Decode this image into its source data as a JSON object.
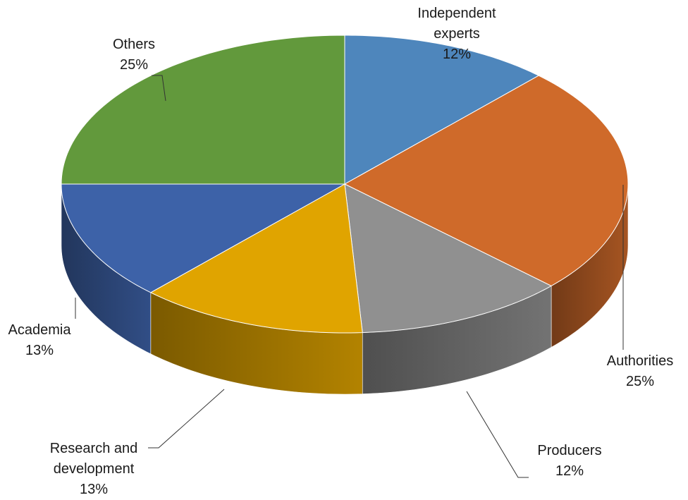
{
  "chart_data": {
    "type": "pie",
    "style": "3d-exploded-none",
    "start_angle_deg": 0,
    "direction": "clockwise",
    "slices": [
      {
        "label": "Independent experts",
        "label_lines": [
          "Independent",
          "experts"
        ],
        "value": 12,
        "value_label": "12%",
        "color": "#4e86bc"
      },
      {
        "label": "Authorities",
        "label_lines": [
          "Authorities"
        ],
        "value": 25,
        "value_label": "25%",
        "color": "#cf6a2a"
      },
      {
        "label": "Producers",
        "label_lines": [
          "Producers"
        ],
        "value": 12,
        "value_label": "12%",
        "color": "#909090"
      },
      {
        "label": "Research and development",
        "label_lines": [
          "Research and",
          "development"
        ],
        "value": 13,
        "value_label": "13%",
        "color": "#e0a400"
      },
      {
        "label": "Academia",
        "label_lines": [
          "Academia"
        ],
        "value": 13,
        "value_label": "13%",
        "color": "#3d62a8"
      },
      {
        "label": "Others",
        "label_lines": [
          "Others"
        ],
        "value": 25,
        "value_label": "25%",
        "color": "#62993c"
      }
    ],
    "title": "",
    "legend": "none",
    "data_labels": "category-and-percent-outside-with-leader-lines"
  }
}
